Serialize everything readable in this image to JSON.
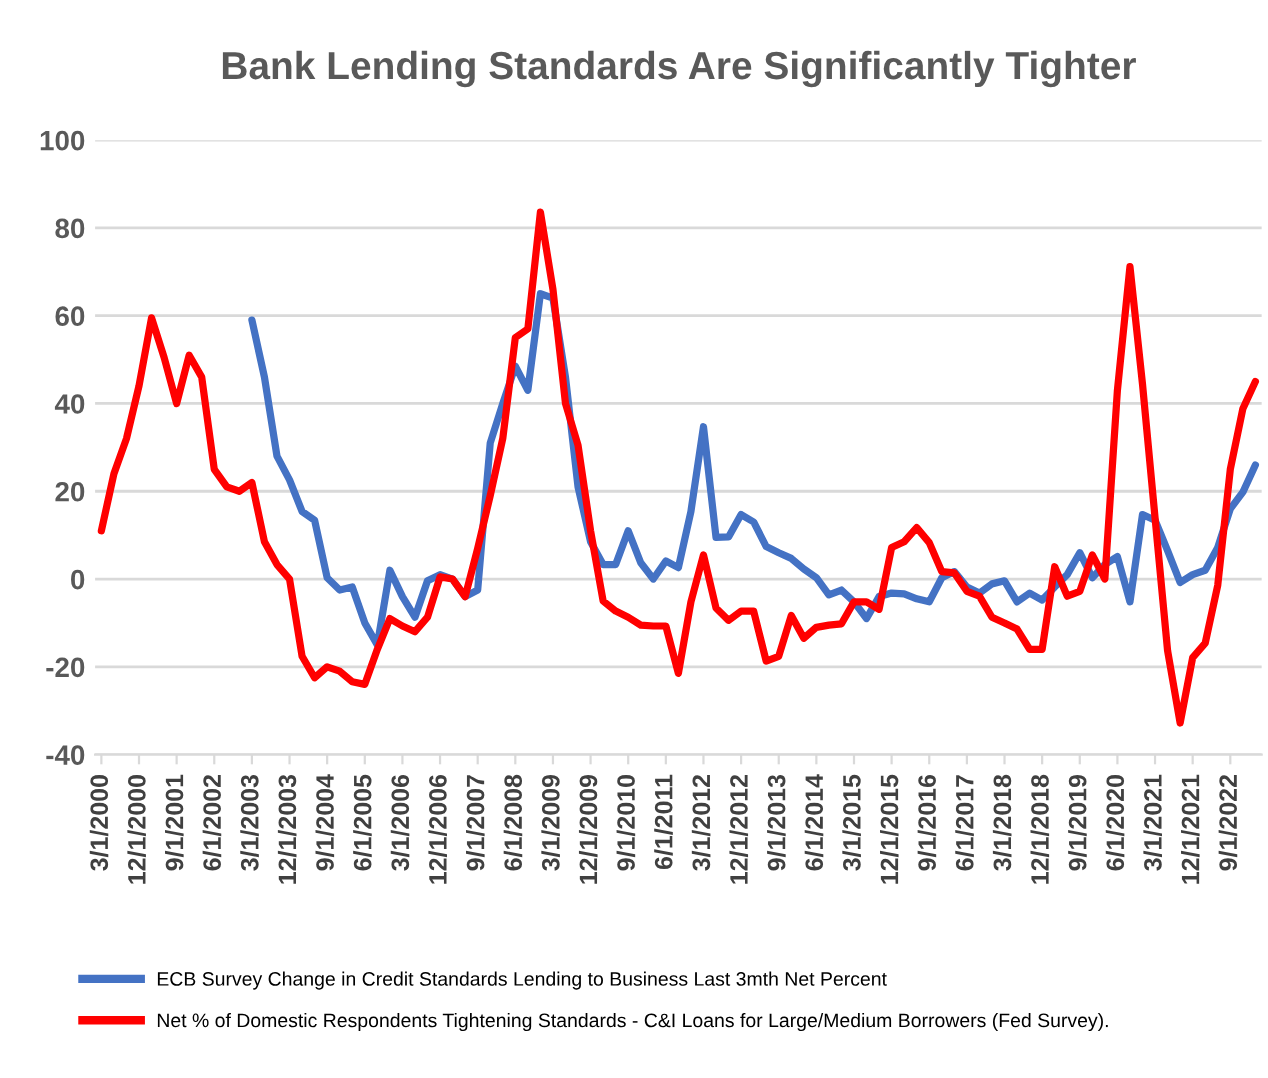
{
  "chart_data": {
    "type": "line",
    "title": "Bank Lending Standards Are Significantly Tighter",
    "categories": [
      "3/1/2000",
      null,
      null,
      "12/1/2000",
      null,
      null,
      "9/1/2001",
      null,
      null,
      "6/1/2002",
      null,
      null,
      "3/1/2003",
      null,
      null,
      "12/1/2003",
      null,
      null,
      "9/1/2004",
      null,
      null,
      "6/1/2005",
      null,
      null,
      "3/1/2006",
      null,
      null,
      "12/1/2006",
      null,
      null,
      "9/1/2007",
      null,
      null,
      "6/1/2008",
      null,
      null,
      "3/1/2009",
      null,
      null,
      "12/1/2009",
      null,
      null,
      "9/1/2010",
      null,
      null,
      "6/1/2011",
      null,
      null,
      "3/1/2012",
      null,
      null,
      "12/1/2012",
      null,
      null,
      "9/1/2013",
      null,
      null,
      "6/1/2014",
      null,
      null,
      "3/1/2015",
      null,
      null,
      "12/1/2015",
      null,
      null,
      "9/1/2016",
      null,
      null,
      "6/1/2017",
      null,
      null,
      "3/1/2018",
      null,
      null,
      "12/1/2018",
      null,
      null,
      "9/1/2019",
      null,
      null,
      "6/1/2020",
      null,
      null,
      "3/1/2021",
      null,
      null,
      "12/1/2021",
      null,
      null,
      "9/1/2022",
      null,
      null
    ],
    "series": [
      {
        "name": "ECB Survey Change in Credit Standards Lending to Business Last 3mth Net Percent",
        "color": "#4472c4",
        "values": [
          null,
          null,
          null,
          null,
          null,
          null,
          null,
          null,
          null,
          null,
          null,
          null,
          59,
          46,
          28,
          22.6,
          15.4,
          13.4,
          0.3,
          -2.5,
          -1.8,
          -10,
          -15,
          2,
          -4,
          -8.7,
          -0.4,
          1,
          0,
          -4,
          -2.5,
          31,
          40,
          48.5,
          43,
          65,
          64,
          46,
          21,
          8.5,
          3.3,
          3.3,
          11,
          3.7,
          0,
          4.1,
          2.6,
          15.4,
          34.7,
          9.5,
          9.6,
          14.7,
          13,
          7.4,
          6,
          4.7,
          2.3,
          0.3,
          -3.6,
          -2.5,
          -5.2,
          -9,
          -4,
          -3.2,
          -3.4,
          -4.5,
          -5.2,
          0.3,
          1.7,
          -1.8,
          -3.2,
          -1.1,
          -0.4,
          -5.2,
          -3.2,
          -4.8,
          -1.8,
          1,
          6,
          0.3,
          3.3,
          5.1,
          -5.2,
          14.7,
          13.4,
          6.5,
          -0.8,
          1,
          2,
          7.2,
          16,
          19.8,
          26
        ]
      },
      {
        "name": "Net % of Domestic Respondents Tightening Standards - C&I Loans for Large/Medium Borrowers (Fed Survey).",
        "color": "#ff0000",
        "values": [
          11,
          24,
          32,
          44,
          59.5,
          50.5,
          40,
          51,
          46,
          25,
          21,
          20,
          22,
          8.5,
          3.3,
          0,
          -17.6,
          -22.5,
          -20,
          -21,
          -23.4,
          -24,
          -16,
          -9,
          -10.7,
          -12,
          -8.7,
          0.5,
          0,
          -4,
          7,
          19,
          32,
          55,
          57,
          83.6,
          66,
          40,
          30.5,
          11,
          -5,
          -7.3,
          -8.7,
          -10.5,
          -10.7,
          -10.7,
          -21.5,
          -5.2,
          5.5,
          -6.6,
          -9.4,
          -7.3,
          -7.3,
          -18.7,
          -17.6,
          -8.3,
          -13.5,
          -11,
          -10.5,
          -10.2,
          -5.2,
          -5.2,
          -6.9,
          7.2,
          8.5,
          11.7,
          8.3,
          1.7,
          1.4,
          -2.8,
          -3.9,
          -8.7,
          -10,
          -11.4,
          -16,
          -16,
          2.8,
          -3.9,
          -2.8,
          5.5,
          0,
          43,
          71.2,
          44.4,
          14,
          -16.3,
          -32.8,
          -17.9,
          -14.6,
          -1.4,
          25,
          38.8,
          45
        ]
      }
    ],
    "ylim": [
      -40,
      100
    ],
    "yticks": [
      -40,
      -20,
      0,
      20,
      40,
      60,
      80,
      100
    ],
    "grid": "y",
    "legend": "bottom",
    "line_style": "solid"
  }
}
